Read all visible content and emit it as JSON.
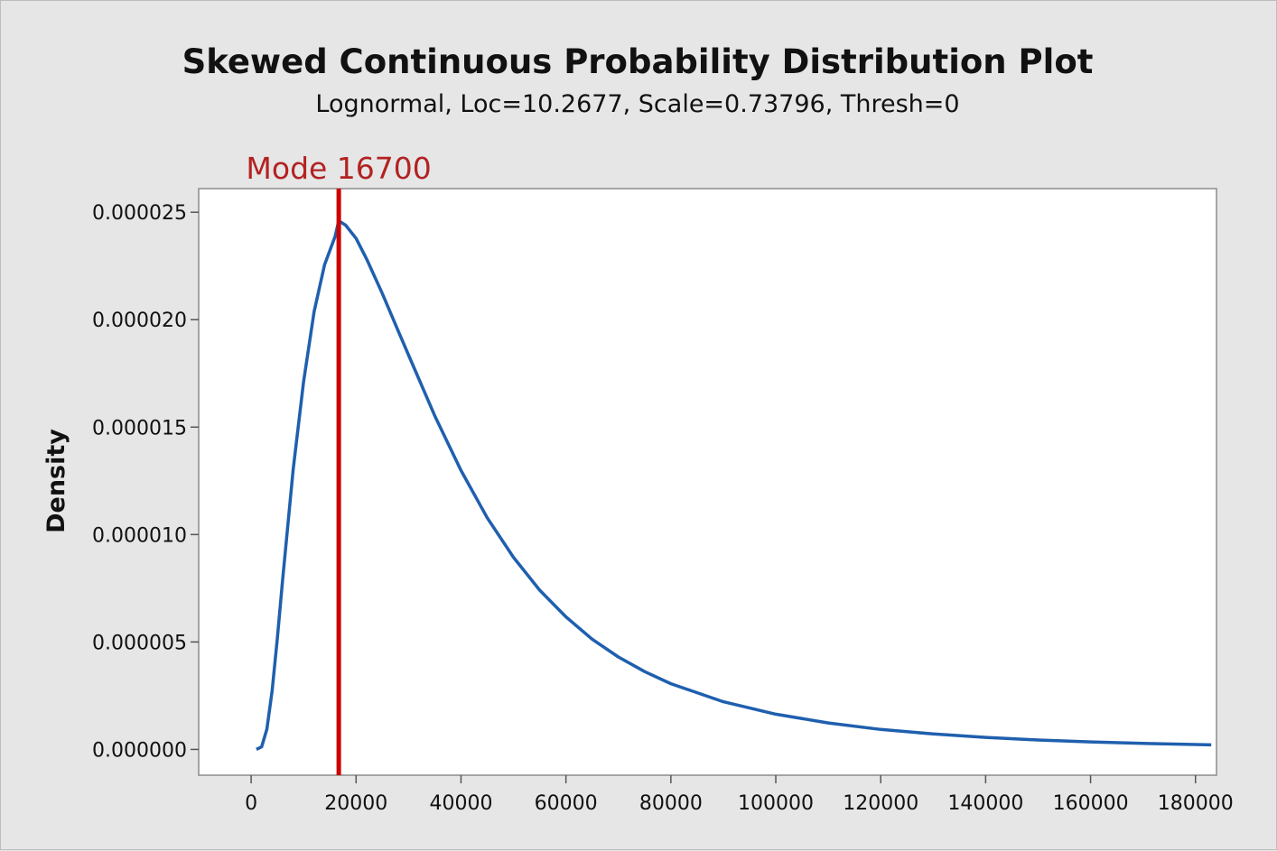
{
  "chart_data": {
    "type": "line",
    "title": "Skewed Continuous Probability Distribution Plot",
    "subtitle": "Lognormal, Loc=10.2677, Scale=0.73796, Thresh=0",
    "xlabel": "",
    "ylabel": "Density",
    "distribution": {
      "name": "Lognormal",
      "loc": 10.2677,
      "scale": 0.73796,
      "threshold": 0
    },
    "xlim": [
      -10000,
      184000
    ],
    "ylim": [
      -1.2e-06,
      2.61e-05
    ],
    "x_ticks": [
      0,
      20000,
      40000,
      60000,
      80000,
      100000,
      120000,
      140000,
      160000,
      180000
    ],
    "x_tick_labels": [
      "0",
      "20000",
      "40000",
      "60000",
      "80000",
      "100000",
      "120000",
      "140000",
      "160000",
      "180000"
    ],
    "y_ticks": [
      0,
      5e-06,
      1e-05,
      1.5e-05,
      2e-05,
      2.5e-05
    ],
    "y_tick_labels": [
      "0.000000",
      "0.000005",
      "0.000010",
      "0.000015",
      "0.000020",
      "0.000025"
    ],
    "series": [
      {
        "color": "#1f5fae",
        "x": [
          1000,
          2000,
          3000,
          4000,
          5000,
          6000,
          8000,
          10000,
          12000,
          14000,
          16000,
          16700,
          18000,
          20000,
          22000,
          25000,
          28000,
          30000,
          35000,
          40000,
          45000,
          50000,
          55000,
          60000,
          65000,
          70000,
          75000,
          80000,
          90000,
          100000,
          110000,
          120000,
          130000,
          140000,
          150000,
          160000,
          170000,
          180000,
          183000
        ],
        "y": [
          0.0,
          1.2e-07,
          9.4e-07,
          2.72e-06,
          5.17e-06,
          7.87e-06,
          1.302e-05,
          1.713e-05,
          2.037e-05,
          2.256e-05,
          2.387e-05,
          2.46e-05,
          2.44e-05,
          2.378e-05,
          2.283e-05,
          2.122e-05,
          1.949e-05,
          1.835e-05,
          1.553e-05,
          1.298e-05,
          1.078e-05,
          8.94e-06,
          7.41e-06,
          6.17e-06,
          5.13e-06,
          4.3e-06,
          3.62e-06,
          3.06e-06,
          2.22e-06,
          1.64e-06,
          1.23e-06,
          9.3e-07,
          7.2e-07,
          5.6e-07,
          4.4e-07,
          3.5e-07,
          2.8e-07,
          2.3e-07,
          2.1e-07
        ]
      }
    ],
    "annotations": [
      {
        "type": "vline",
        "x": 16700,
        "label": "Mode 16700",
        "color": "#cc0000",
        "label_color": "#b22222"
      }
    ],
    "grid": false,
    "legend": "none"
  }
}
